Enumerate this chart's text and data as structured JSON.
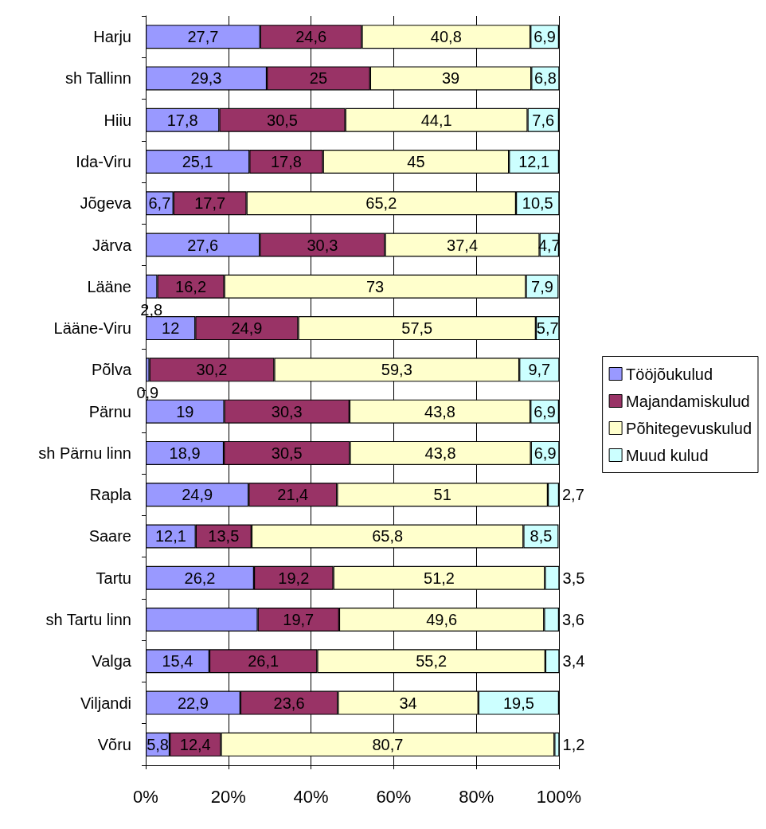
{
  "chart_data": {
    "type": "bar",
    "orientation": "horizontal",
    "stacked": true,
    "categories": [
      "Harju",
      "sh Tallinn",
      "Hiiu",
      "Ida-Viru",
      "Jõgeva",
      "Järva",
      "Lääne",
      "Lääne-Viru",
      "Põlva",
      "Pärnu",
      "sh Pärnu linn",
      "Rapla",
      "Saare",
      "Tartu",
      "sh Tartu linn",
      "Valga",
      "Viljandi",
      "Võru"
    ],
    "series": [
      {
        "name": "Tööjõukulud",
        "color": "#9999ff",
        "values": [
          27.7,
          29.3,
          17.8,
          25.1,
          6.7,
          27.6,
          2.8,
          12,
          0.9,
          19,
          18.9,
          24.9,
          12.1,
          26.2,
          27.1,
          15.4,
          22.9,
          5.8
        ],
        "value_labels": [
          "27,7",
          "29,3",
          "17,8",
          "25,1",
          "6,7",
          "27,6",
          "2,8",
          "12",
          "0,9",
          "19",
          "18,9",
          "24,9",
          "12,1",
          "26,2",
          null,
          "15,4",
          "22,9",
          "5,8"
        ]
      },
      {
        "name": "Majandamiskulud",
        "color": "#993366",
        "values": [
          24.6,
          25,
          30.5,
          17.8,
          17.7,
          30.3,
          16.2,
          24.9,
          30.2,
          30.3,
          30.5,
          21.4,
          13.5,
          19.2,
          19.7,
          26.1,
          23.6,
          12.4
        ],
        "value_labels": [
          "24,6",
          "25",
          "30,5",
          "17,8",
          "17,7",
          "30,3",
          "16,2",
          "24,9",
          "30,2",
          "30,3",
          "30,5",
          "21,4",
          "13,5",
          "19,2",
          "19,7",
          "26,1",
          "23,6",
          "12,4"
        ]
      },
      {
        "name": "Põhitegevuskulud",
        "color": "#ffffcc",
        "values": [
          40.8,
          39,
          44.1,
          45,
          65.2,
          37.4,
          73,
          57.5,
          59.3,
          43.8,
          43.8,
          51,
          65.8,
          51.2,
          49.6,
          55.2,
          34,
          80.7
        ],
        "value_labels": [
          "40,8",
          "39",
          "44,1",
          "45",
          "65,2",
          "37,4",
          "73",
          "57,5",
          "59,3",
          "43,8",
          "43,8",
          "51",
          "65,8",
          "51,2",
          "49,6",
          "55,2",
          "34",
          "80,7"
        ]
      },
      {
        "name": "Muud kulud",
        "color": "#ccffff",
        "values": [
          6.9,
          6.8,
          7.6,
          12.1,
          10.5,
          4.7,
          7.9,
          5.7,
          9.7,
          6.9,
          6.9,
          2.7,
          8.5,
          3.5,
          3.6,
          3.4,
          19.5,
          1.2
        ],
        "value_labels": [
          "6,9",
          "6,8",
          "7,6",
          "12,1",
          "10,5",
          "4,7",
          "7,9",
          "5,7",
          "9,7",
          "6,9",
          "6,9",
          "2,7",
          "8,5",
          "3,5",
          "3,6",
          "3,4",
          "19,5",
          "1,2"
        ]
      }
    ],
    "xlim": [
      0,
      100
    ],
    "xticks": [
      {
        "value": 0,
        "label": "0%"
      },
      {
        "value": 20,
        "label": "20%"
      },
      {
        "value": 40,
        "label": "40%"
      },
      {
        "value": 60,
        "label": "60%"
      },
      {
        "value": 80,
        "label": "80%"
      },
      {
        "value": 100,
        "label": "100%"
      }
    ],
    "grid": "x",
    "legend": "right"
  }
}
